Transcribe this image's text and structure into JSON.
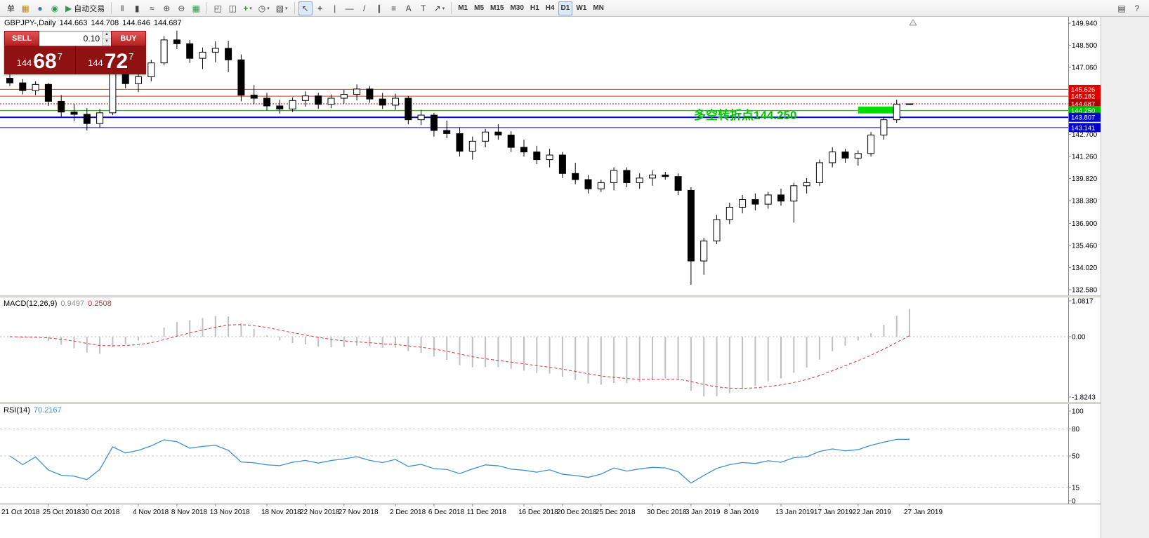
{
  "icons": {
    "spinner_up": "▲",
    "spinner_down": "▼",
    "dropdown": "▾"
  },
  "toolbar": {
    "groups": [
      {
        "items": [
          {
            "name": "new-order-button",
            "label": "单"
          },
          {
            "name": "new-chart-button",
            "glyph": "▦",
            "color": "#c08a1e"
          },
          {
            "name": "profiles-button",
            "glyph": "●",
            "color": "#3a6ec0"
          },
          {
            "name": "data-window-button",
            "glyph": "◉",
            "color": "#2e9b4e"
          },
          {
            "name": "autotrading-button",
            "glyph": "▶",
            "color": "#2e9b4e",
            "label": "自动交易"
          }
        ]
      },
      {
        "items": [
          {
            "name": "bar-chart-button",
            "glyph": "‖"
          },
          {
            "name": "candlestick-chart-button",
            "glyph": "▮"
          },
          {
            "name": "line-chart-button",
            "glyph": "≈"
          },
          {
            "name": "zoom-in-button",
            "glyph": "⊕"
          },
          {
            "name": "zoom-out-button",
            "glyph": "⊖"
          },
          {
            "name": "tile-windows-button",
            "glyph": "▦",
            "color": "#2e9b4e"
          }
        ]
      },
      {
        "items": [
          {
            "name": "cascade-windows-button",
            "glyph": "◰"
          },
          {
            "name": "arrange-windows-button",
            "glyph": "◫"
          },
          {
            "name": "indicators-button",
            "glyph": "+",
            "color": "#1c9b1c",
            "dropdown": true
          },
          {
            "name": "periods-button",
            "glyph": "◷",
            "dropdown": true
          },
          {
            "name": "templates-button",
            "glyph": "▧",
            "dropdown": true
          }
        ]
      },
      {
        "items": [
          {
            "name": "cursor-button",
            "glyph": "↖",
            "active": true
          },
          {
            "name": "crosshair-button",
            "glyph": "+"
          },
          {
            "name": "vertical-line-button",
            "glyph": "|"
          },
          {
            "name": "horizontal-line-button",
            "glyph": "—"
          },
          {
            "name": "trendline-button",
            "glyph": "/"
          },
          {
            "name": "equidistant-channel-button",
            "glyph": "∥"
          },
          {
            "name": "fibonacci-button",
            "glyph": "≡"
          },
          {
            "name": "text-button",
            "glyph": "A"
          },
          {
            "name": "text-label-button",
            "glyph": "T"
          },
          {
            "name": "arrows-button",
            "glyph": "↗",
            "dropdown": true
          }
        ]
      },
      {
        "items": [
          {
            "name": "tf-m1-button",
            "label": "M1",
            "tf": true
          },
          {
            "name": "tf-m5-button",
            "label": "M5",
            "tf": true
          },
          {
            "name": "tf-m15-button",
            "label": "M15",
            "tf": true
          },
          {
            "name": "tf-m30-button",
            "label": "M30",
            "tf": true
          },
          {
            "name": "tf-h1-button",
            "label": "H1",
            "tf": true
          },
          {
            "name": "tf-h4-button",
            "label": "H4",
            "tf": true
          },
          {
            "name": "tf-d1-button",
            "label": "D1",
            "tf": true,
            "active": true
          },
          {
            "name": "tf-w1-button",
            "label": "W1",
            "tf": true
          },
          {
            "name": "tf-mn-button",
            "label": "MN",
            "tf": true
          }
        ]
      }
    ],
    "right_items": [
      {
        "name": "print-button",
        "glyph": "▤"
      },
      {
        "name": "help-button",
        "glyph": "?"
      }
    ]
  },
  "quote_bar": {
    "symbol_period": "GBPJPY-,Daily",
    "open": "144.663",
    "high": "144.708",
    "low": "144.646",
    "close": "144.687"
  },
  "trade_panel": {
    "sell_label": "SELL",
    "buy_label": "BUY",
    "volume": "0.10",
    "sell": {
      "prefix": "144",
      "big": "68",
      "pip": "7"
    },
    "buy": {
      "prefix": "144",
      "big": "72",
      "pip": "7"
    }
  },
  "annotation": {
    "text": "多空转折点144.250",
    "color": "#00c400"
  },
  "macd": {
    "title": "MACD(12,26,9)",
    "main_value": "0.9497",
    "signal_value": "0.2508"
  },
  "rsi": {
    "title": "RSI(14)",
    "value": "70.2167"
  },
  "chart_data": [
    {
      "type": "candlestick",
      "title": "GBPJPY- Daily",
      "ylim": [
        132.58,
        149.94
      ],
      "y_axis_labels": [
        "149.940",
        "148.500",
        "147.060",
        "145.620",
        "144.180",
        "142.700",
        "141.260",
        "139.820",
        "138.380",
        "136.900",
        "135.460",
        "134.020",
        "132.580"
      ],
      "x_ticks": [
        [
          "21 Oct 2018",
          -1
        ],
        [
          "25 Oct 2018",
          3
        ],
        [
          "30 Oct 2018",
          6
        ],
        [
          "4 Nov 2018",
          10
        ],
        [
          "8 Nov 2018",
          13
        ],
        [
          "13 Nov 2018",
          16
        ],
        [
          "18 Nov 2018",
          20
        ],
        [
          "22 Nov 2018",
          23
        ],
        [
          "27 Nov 2018",
          26
        ],
        [
          "2 Dec 2018",
          30
        ],
        [
          "6 Dec 2018",
          33
        ],
        [
          "11 Dec 2018",
          36
        ],
        [
          "16 Dec 2018",
          40
        ],
        [
          "20 Dec 2018",
          43
        ],
        [
          "25 Dec 2018",
          46
        ],
        [
          "30 Dec 2018",
          50
        ],
        [
          "3 Jan 2019",
          53
        ],
        [
          "8 Jan 2019",
          56
        ],
        [
          "13 Jan 2019",
          60
        ],
        [
          "17 Jan 2019",
          63
        ],
        [
          "22 Jan 2019",
          66
        ],
        [
          "27 Jan 2019",
          70
        ]
      ],
      "candles": [
        [
          "22 Oct",
          146.35,
          146.62,
          145.85,
          146.05
        ],
        [
          "23 Oct",
          146.05,
          146.3,
          145.3,
          145.55
        ],
        [
          "24 Oct",
          145.55,
          146.15,
          145.25,
          145.95
        ],
        [
          "25 Oct",
          145.95,
          146.05,
          144.55,
          144.85
        ],
        [
          "26 Oct",
          144.85,
          145.25,
          143.85,
          144.15
        ],
        [
          "29 Oct",
          144.15,
          144.7,
          143.55,
          144.0
        ],
        [
          "30 Oct",
          144.0,
          144.4,
          142.95,
          143.4
        ],
        [
          "31 Oct",
          143.4,
          144.35,
          143.15,
          144.1
        ],
        [
          "1 Nov",
          144.1,
          147.05,
          143.95,
          146.85
        ],
        [
          "2 Nov",
          146.85,
          147.45,
          145.7,
          146.0
        ],
        [
          "5 Nov",
          146.0,
          146.65,
          145.45,
          146.45
        ],
        [
          "6 Nov",
          146.45,
          147.55,
          146.15,
          147.35
        ],
        [
          "7 Nov",
          147.35,
          149.1,
          147.2,
          148.85
        ],
        [
          "8 Nov",
          148.85,
          149.45,
          148.25,
          148.6
        ],
        [
          "9 Nov",
          148.6,
          148.85,
          147.35,
          147.65
        ],
        [
          "12 Nov",
          147.65,
          148.35,
          146.95,
          148.05
        ],
        [
          "13 Nov",
          148.05,
          148.75,
          147.4,
          148.3
        ],
        [
          "14 Nov",
          148.3,
          148.8,
          146.75,
          147.55
        ],
        [
          "15 Nov",
          147.55,
          147.9,
          144.85,
          145.25
        ],
        [
          "16 Nov",
          145.25,
          145.9,
          144.65,
          145.05
        ],
        [
          "19 Nov",
          145.05,
          145.4,
          144.25,
          144.55
        ],
        [
          "20 Nov",
          144.55,
          144.95,
          144.05,
          144.35
        ],
        [
          "21 Nov",
          144.35,
          145.1,
          144.15,
          144.9
        ],
        [
          "22 Nov",
          144.9,
          145.5,
          144.5,
          145.2
        ],
        [
          "23 Nov",
          145.2,
          145.4,
          144.35,
          144.65
        ],
        [
          "26 Nov",
          144.65,
          145.3,
          144.4,
          145.05
        ],
        [
          "27 Nov",
          145.05,
          145.6,
          144.7,
          145.3
        ],
        [
          "28 Nov",
          145.3,
          145.95,
          144.9,
          145.65
        ],
        [
          "29 Nov",
          145.65,
          145.85,
          144.75,
          145.0
        ],
        [
          "30 Nov",
          145.0,
          145.4,
          144.35,
          144.6
        ],
        [
          "3 Dec",
          144.6,
          145.35,
          144.3,
          145.05
        ],
        [
          "4 Dec",
          145.05,
          145.2,
          143.35,
          143.65
        ],
        [
          "5 Dec",
          143.65,
          144.3,
          143.3,
          143.95
        ],
        [
          "6 Dec",
          143.95,
          144.1,
          142.55,
          142.95
        ],
        [
          "7 Dec",
          142.95,
          143.6,
          142.45,
          142.75
        ],
        [
          "10 Dec",
          142.75,
          143.15,
          141.25,
          141.6
        ],
        [
          "11 Dec",
          141.6,
          142.55,
          141.05,
          142.25
        ],
        [
          "12 Dec",
          142.25,
          143.05,
          141.85,
          142.85
        ],
        [
          "13 Dec",
          142.85,
          143.35,
          142.35,
          142.65
        ],
        [
          "14 Dec",
          142.65,
          142.9,
          141.55,
          141.85
        ],
        [
          "17 Dec",
          141.85,
          142.35,
          141.25,
          141.55
        ],
        [
          "18 Dec",
          141.55,
          141.95,
          140.75,
          141.05
        ],
        [
          "19 Dec",
          141.05,
          141.75,
          140.55,
          141.35
        ],
        [
          "20 Dec",
          141.35,
          141.55,
          139.85,
          140.15
        ],
        [
          "21 Dec",
          140.15,
          140.85,
          139.45,
          139.75
        ],
        [
          "24 Dec",
          139.75,
          140.05,
          138.85,
          139.15
        ],
        [
          "25 Dec",
          139.15,
          139.75,
          138.95,
          139.55
        ],
        [
          "26 Dec",
          139.55,
          140.55,
          139.05,
          140.35
        ],
        [
          "27 Dec",
          140.35,
          140.55,
          139.25,
          139.55
        ],
        [
          "28 Dec",
          139.55,
          140.15,
          139.15,
          139.85
        ],
        [
          "31 Dec",
          139.85,
          140.35,
          139.35,
          140.05
        ],
        [
          "1 Jan",
          140.05,
          140.25,
          139.75,
          139.95
        ],
        [
          "2 Jan",
          139.95,
          140.15,
          138.75,
          139.05
        ],
        [
          "3 Jan",
          139.05,
          139.25,
          132.9,
          134.45
        ],
        [
          "4 Jan",
          134.45,
          135.95,
          133.55,
          135.75
        ],
        [
          "7 Jan",
          135.75,
          137.45,
          135.55,
          137.15
        ],
        [
          "8 Jan",
          137.15,
          138.25,
          136.85,
          137.95
        ],
        [
          "9 Jan",
          137.95,
          138.75,
          137.55,
          138.45
        ],
        [
          "10 Jan",
          138.45,
          138.85,
          137.75,
          138.15
        ],
        [
          "11 Jan",
          138.15,
          138.95,
          137.85,
          138.75
        ],
        [
          "14 Jan",
          138.75,
          139.15,
          138.05,
          138.35
        ],
        [
          "15 Jan",
          138.35,
          139.55,
          136.95,
          139.35
        ],
        [
          "16 Jan",
          139.35,
          139.85,
          138.85,
          139.55
        ],
        [
          "17 Jan",
          139.55,
          141.05,
          139.35,
          140.85
        ],
        [
          "18 Jan",
          140.85,
          141.85,
          140.55,
          141.55
        ],
        [
          "21 Jan",
          141.55,
          141.75,
          140.85,
          141.15
        ],
        [
          "22 Jan",
          141.15,
          141.65,
          140.65,
          141.45
        ],
        [
          "23 Jan",
          141.45,
          142.85,
          141.25,
          142.65
        ],
        [
          "24 Jan",
          142.65,
          143.85,
          142.35,
          143.65
        ],
        [
          "25 Jan",
          143.65,
          144.95,
          143.45,
          144.66
        ],
        [
          "27 Jan",
          144.663,
          144.708,
          144.646,
          144.687
        ]
      ],
      "hlines": [
        {
          "price": 145.626,
          "label": "145.626",
          "color": "#ff2020",
          "width": 1,
          "badge": "#e00000"
        },
        {
          "price": 145.182,
          "label": "145.182",
          "color": "#ff2020",
          "width": 1,
          "badge": "#e00000"
        },
        {
          "price": 144.687,
          "label": "144.687",
          "color": "#cc0000",
          "width": 1,
          "dash": "2 2",
          "badge": "#b00000"
        },
        {
          "price": 144.25,
          "label": "144.250",
          "color": "#00d200",
          "width": 1.4,
          "badge": "#00c000"
        },
        {
          "price": 143.807,
          "label": "143.807",
          "color": "#0000e6",
          "width": 2,
          "badge": "#0000cc"
        },
        {
          "price": 143.141,
          "label": "143.141",
          "color": "#0000e6",
          "width": 1,
          "badge": "#0000cc"
        }
      ],
      "highlight_rect": {
        "i1": 66,
        "i2": 68.8,
        "p1": 144.5,
        "p2": 144.06,
        "color": "#00dd00"
      },
      "current_price": 144.687
    },
    {
      "type": "bar",
      "name": "MACD(12,26,9) histogram with signal line, derived from candle closes",
      "ylim": [
        -1.8243,
        1.0817
      ],
      "axis_labels": [
        {
          "v": 1.0817,
          "t": "1.0817"
        },
        {
          "v": 0,
          "t": "0.00"
        },
        {
          "v": -1.8243,
          "t": "-1.8243"
        }
      ],
      "current_main": 0.9497,
      "current_signal": 0.2508,
      "histogram_color": "#c0c0c0",
      "signal_color": "#e03030"
    },
    {
      "type": "line",
      "name": "RSI(14), derived from candle closes",
      "ylim": [
        0,
        100
      ],
      "levels": [
        80,
        50,
        15
      ],
      "axis_labels": [
        {
          "v": 100,
          "t": "100"
        },
        {
          "v": 80,
          "t": "80"
        },
        {
          "v": 50,
          "t": "50"
        },
        {
          "v": 15,
          "t": "15"
        },
        {
          "v": 0,
          "t": "0"
        }
      ],
      "current": 70.2167,
      "line_color": "#3f8fd2"
    }
  ]
}
